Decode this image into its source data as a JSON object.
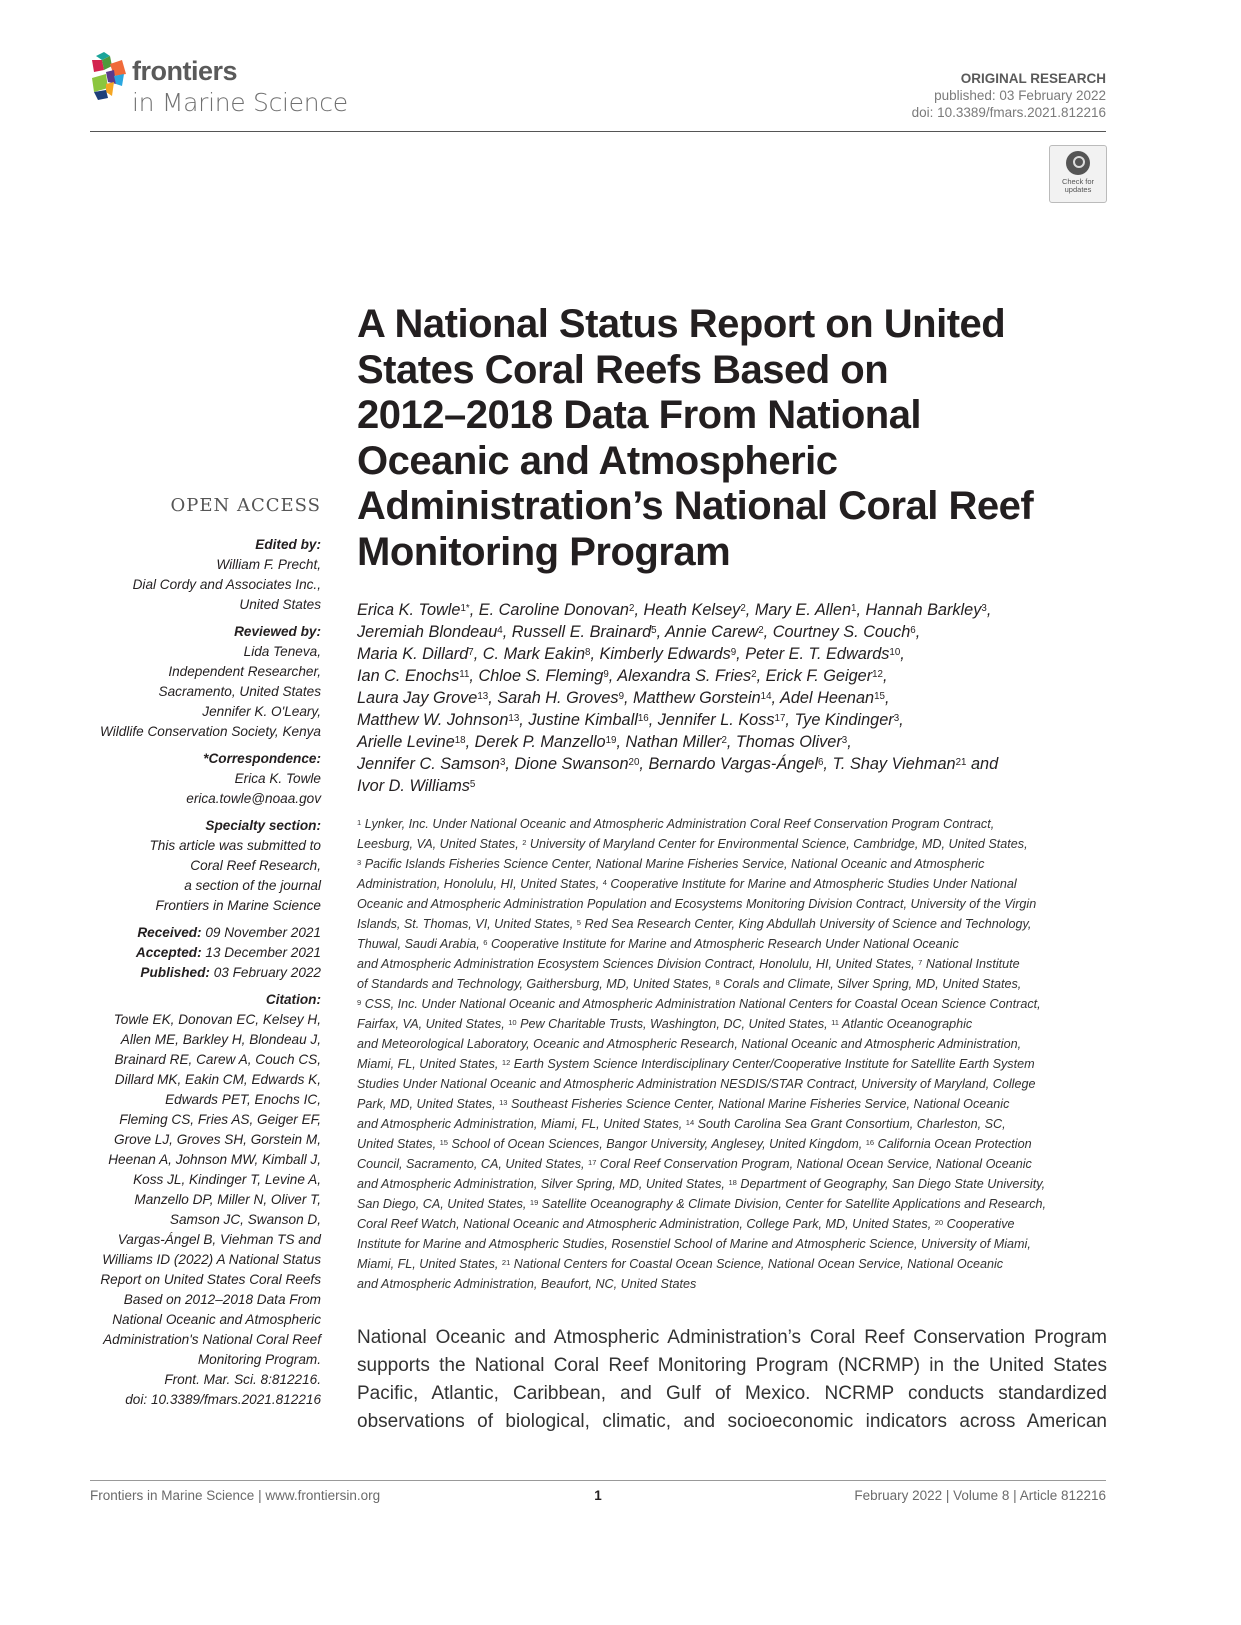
{
  "journal": {
    "logo_word": "frontiers",
    "logo_sub": "in Marine Science"
  },
  "header": {
    "article_type": "ORIGINAL RESEARCH",
    "published": "published: 03 February 2022",
    "doi": "doi: 10.3389/fmars.2021.812216",
    "badge_text": "Check for updates"
  },
  "sidebar": {
    "open_access": "OPEN ACCESS",
    "edited_by_label": "Edited by:",
    "edited_by": [
      "William F. Precht,",
      "Dial Cordy and Associates Inc.,",
      "United States"
    ],
    "reviewed_by_label": "Reviewed by:",
    "reviewed_by": [
      "Lida Teneva,",
      "Independent Researcher,",
      "Sacramento, United States",
      "Jennifer K. O'Leary,",
      "Wildlife Conservation Society, Kenya"
    ],
    "correspondence_label": "*Correspondence:",
    "correspondence": [
      "Erica K. Towle",
      "erica.towle@noaa.gov"
    ],
    "specialty_label": "Specialty section:",
    "specialty": [
      "This article was submitted to",
      "Coral Reef Research,",
      "a section of the journal",
      "Frontiers in Marine Science"
    ],
    "dates": [
      {
        "label": "Received:",
        "value": "09 November 2021"
      },
      {
        "label": "Accepted:",
        "value": "13 December 2021"
      },
      {
        "label": "Published:",
        "value": "03 February 2022"
      }
    ],
    "citation_label": "Citation:",
    "citation": [
      "Towle EK, Donovan EC, Kelsey H,",
      "Allen ME, Barkley H, Blondeau J,",
      "Brainard RE, Carew A, Couch CS,",
      "Dillard MK, Eakin CM, Edwards K,",
      "Edwards PET, Enochs IC,",
      "Fleming CS, Fries AS, Geiger EF,",
      "Grove LJ, Groves SH, Gorstein M,",
      "Heenan A, Johnson MW, Kimball J,",
      "Koss JL, Kindinger T, Levine A,",
      "Manzello DP, Miller N, Oliver T,",
      "Samson JC, Swanson D,",
      "Vargas-Ángel B, Viehman TS and",
      "Williams ID (2022) A National Status",
      "Report on United States Coral Reefs",
      "Based on 2012–2018 Data From",
      "National Oceanic and Atmospheric",
      "Administration's National Coral Reef",
      "Monitoring Program.",
      "Front. Mar. Sci. 8:812216.",
      "doi: 10.3389/fmars.2021.812216"
    ]
  },
  "title_lines": [
    "A National Status Report on United",
    "States Coral Reefs Based on",
    "2012–2018 Data From National",
    "Oceanic and Atmospheric",
    "Administration’s National Coral Reef",
    "Monitoring Program"
  ],
  "author_lines": [
    [
      [
        "Erica K. Towle",
        "1*"
      ],
      [
        ", E. Caroline Donovan",
        "2"
      ],
      [
        ", Heath Kelsey",
        "2"
      ],
      [
        ", Mary E. Allen",
        "1"
      ],
      [
        ", Hannah Barkley",
        "3"
      ],
      [
        ",",
        ""
      ]
    ],
    [
      [
        "Jeremiah Blondeau",
        "4"
      ],
      [
        ", Russell E. Brainard",
        "5"
      ],
      [
        ", Annie Carew",
        "2"
      ],
      [
        ", Courtney S. Couch",
        "6"
      ],
      [
        ",",
        ""
      ]
    ],
    [
      [
        "Maria K. Dillard",
        "7"
      ],
      [
        ", C. Mark Eakin",
        "8"
      ],
      [
        ", Kimberly Edwards",
        "9"
      ],
      [
        ", Peter E. T. Edwards",
        "10"
      ],
      [
        ",",
        ""
      ]
    ],
    [
      [
        "Ian C. Enochs",
        "11"
      ],
      [
        ", Chloe S. Fleming",
        "9"
      ],
      [
        ", Alexandra S. Fries",
        "2"
      ],
      [
        ", Erick F. Geiger",
        "12"
      ],
      [
        ",",
        ""
      ]
    ],
    [
      [
        "Laura Jay Grove",
        "13"
      ],
      [
        ", Sarah H. Groves",
        "9"
      ],
      [
        ", Matthew Gorstein",
        "14"
      ],
      [
        ", Adel Heenan",
        "15"
      ],
      [
        ",",
        ""
      ]
    ],
    [
      [
        "Matthew W. Johnson",
        "13"
      ],
      [
        ", Justine Kimball",
        "16"
      ],
      [
        ", Jennifer L. Koss",
        "17"
      ],
      [
        ", Tye Kindinger",
        "3"
      ],
      [
        ",",
        ""
      ]
    ],
    [
      [
        "Arielle Levine",
        "18"
      ],
      [
        ", Derek P. Manzello",
        "19"
      ],
      [
        ", Nathan Miller",
        "2"
      ],
      [
        ", Thomas Oliver",
        "3"
      ],
      [
        ",",
        ""
      ]
    ],
    [
      [
        "Jennifer C. Samson",
        "3"
      ],
      [
        ", Dione Swanson",
        "20"
      ],
      [
        ", Bernardo Vargas-Ángel",
        "6"
      ],
      [
        ", T. Shay Viehman",
        "21"
      ],
      [
        " and",
        ""
      ]
    ],
    [
      [
        "Ivor D. Williams",
        "5"
      ]
    ]
  ],
  "affiliation_lines": [
    [
      [
        "1",
        " Lynker, Inc. Under National Oceanic and Atmospheric Administration Coral Reef Conservation Program Contract,"
      ]
    ],
    [
      [
        "",
        "Leesburg, VA, United States, "
      ],
      [
        "2",
        " University of Maryland Center for Environmental Science, Cambridge, MD, United States,"
      ]
    ],
    [
      [
        "3",
        " Pacific Islands Fisheries Science Center, National Marine Fisheries Service, National Oceanic and Atmospheric"
      ]
    ],
    [
      [
        "",
        "Administration, Honolulu, HI, United States, "
      ],
      [
        "4",
        " Cooperative Institute for Marine and Atmospheric Studies Under National"
      ]
    ],
    [
      [
        "",
        "Oceanic and Atmospheric Administration Population and Ecosystems Monitoring Division Contract, University of the Virgin"
      ]
    ],
    [
      [
        "",
        "Islands, St. Thomas, VI, United States, "
      ],
      [
        "5",
        " Red Sea Research Center, King Abdullah University of Science and Technology,"
      ]
    ],
    [
      [
        "",
        "Thuwal, Saudi Arabia, "
      ],
      [
        "6",
        " Cooperative Institute for Marine and Atmospheric Research Under National Oceanic"
      ]
    ],
    [
      [
        "",
        "and Atmospheric Administration Ecosystem Sciences Division Contract, Honolulu, HI, United States, "
      ],
      [
        "7",
        " National Institute"
      ]
    ],
    [
      [
        "",
        "of Standards and Technology, Gaithersburg, MD, United States, "
      ],
      [
        "8",
        " Corals and Climate, Silver Spring, MD, United States,"
      ]
    ],
    [
      [
        "9",
        " CSS, Inc. Under National Oceanic and Atmospheric Administration National Centers for Coastal Ocean Science Contract,"
      ]
    ],
    [
      [
        "",
        "Fairfax, VA, United States, "
      ],
      [
        "10",
        " Pew Charitable Trusts, Washington, DC, United States, "
      ],
      [
        "11",
        " Atlantic Oceanographic"
      ]
    ],
    [
      [
        "",
        "and Meteorological Laboratory, Oceanic and Atmospheric Research, National Oceanic and Atmospheric Administration,"
      ]
    ],
    [
      [
        "",
        "Miami, FL, United States, "
      ],
      [
        "12",
        " Earth System Science Interdisciplinary Center/Cooperative Institute for Satellite Earth System"
      ]
    ],
    [
      [
        "",
        "Studies Under National Oceanic and Atmospheric Administration NESDIS/STAR Contract, University of Maryland, College"
      ]
    ],
    [
      [
        "",
        "Park, MD, United States, "
      ],
      [
        "13",
        " Southeast Fisheries Science Center, National Marine Fisheries Service, National Oceanic"
      ]
    ],
    [
      [
        "",
        "and Atmospheric Administration, Miami, FL, United States, "
      ],
      [
        "14",
        " South Carolina Sea Grant Consortium, Charleston, SC,"
      ]
    ],
    [
      [
        "",
        "United States, "
      ],
      [
        "15",
        " School of Ocean Sciences, Bangor University, Anglesey, United Kingdom, "
      ],
      [
        "16",
        " California Ocean Protection"
      ]
    ],
    [
      [
        "",
        "Council, Sacramento, CA, United States, "
      ],
      [
        "17",
        " Coral Reef Conservation Program, National Ocean Service, National Oceanic"
      ]
    ],
    [
      [
        "",
        "and Atmospheric Administration, Silver Spring, MD, United States, "
      ],
      [
        "18",
        " Department of Geography, San Diego State University,"
      ]
    ],
    [
      [
        "",
        "San Diego, CA, United States, "
      ],
      [
        "19",
        " Satellite Oceanography & Climate Division, Center for Satellite Applications and Research,"
      ]
    ],
    [
      [
        "",
        "Coral Reef Watch, National Oceanic and Atmospheric Administration, College Park, MD, United States, "
      ],
      [
        "20",
        " Cooperative"
      ]
    ],
    [
      [
        "",
        "Institute for Marine and Atmospheric Studies, Rosenstiel School of Marine and Atmospheric Science, University of Miami,"
      ]
    ],
    [
      [
        "",
        "Miami, FL, United States, "
      ],
      [
        "21",
        " National Centers for Coastal Ocean Science, National Ocean Service, National Oceanic"
      ]
    ],
    [
      [
        "",
        "and Atmospheric Administration, Beaufort, NC, United States"
      ]
    ]
  ],
  "abstract_lines": [
    "National Oceanic and Atmospheric Administration’s Coral Reef Conservation Program",
    "supports the National Coral Reef Monitoring Program (NCRMP) in the United States",
    "Pacific, Atlantic, Caribbean, and Gulf of Mexico. NCRMP conducts standardized",
    "observations of biological, climatic, and socioeconomic indicators across American"
  ],
  "footer": {
    "left": "Frontiers in Marine Science | www.frontiersin.org",
    "page": "1",
    "right": "February 2022 | Volume 8 | Article 812216"
  }
}
